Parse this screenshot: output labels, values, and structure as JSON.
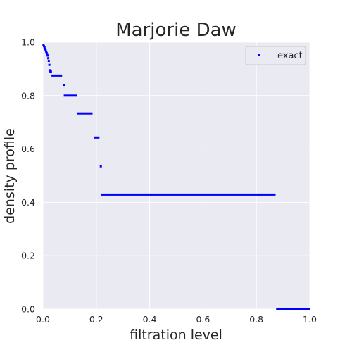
{
  "chart_data": {
    "type": "scatter",
    "title": "Marjorie Daw",
    "xlabel": "filtration level",
    "ylabel": "density profile",
    "xlim": [
      0.0,
      1.0
    ],
    "ylim": [
      0.0,
      1.0
    ],
    "xticks": [
      "0.0",
      "0.2",
      "0.4",
      "0.6",
      "0.8",
      "1.0"
    ],
    "yticks": [
      "0.0",
      "0.2",
      "0.4",
      "0.6",
      "0.8",
      "1.0"
    ],
    "grid": true,
    "legend": {
      "position": "top-right",
      "entries": [
        "exact"
      ]
    },
    "series": [
      {
        "name": "exact",
        "color": "#0000ff",
        "marker": "square",
        "points": [
          [
            0.002,
            0.99
          ],
          [
            0.004,
            0.985
          ],
          [
            0.006,
            0.98
          ],
          [
            0.008,
            0.975
          ],
          [
            0.01,
            0.97
          ],
          [
            0.012,
            0.965
          ],
          [
            0.014,
            0.96
          ],
          [
            0.016,
            0.955
          ],
          [
            0.018,
            0.95
          ],
          [
            0.02,
            0.94
          ],
          [
            0.022,
            0.93
          ],
          [
            0.024,
            0.915
          ],
          [
            0.026,
            0.895
          ],
          [
            0.028,
            0.89
          ],
          [
            0.03,
            0.89
          ]
        ],
        "segments": [
          {
            "x_start": 0.032,
            "x_end": 0.072,
            "y": 0.875
          },
          {
            "x_start": 0.076,
            "x_end": 0.082,
            "y": 0.84
          },
          {
            "x_start": 0.078,
            "x_end": 0.128,
            "y": 0.8
          },
          {
            "x_start": 0.128,
            "x_end": 0.186,
            "y": 0.733
          },
          {
            "x_start": 0.19,
            "x_end": 0.212,
            "y": 0.643
          },
          {
            "x_start": 0.213,
            "x_end": 0.217,
            "y": 0.535
          },
          {
            "x_start": 0.219,
            "x_end": 0.872,
            "y": 0.429
          },
          {
            "x_start": 0.874,
            "x_end": 1.0,
            "y": 0.0
          }
        ]
      }
    ]
  }
}
